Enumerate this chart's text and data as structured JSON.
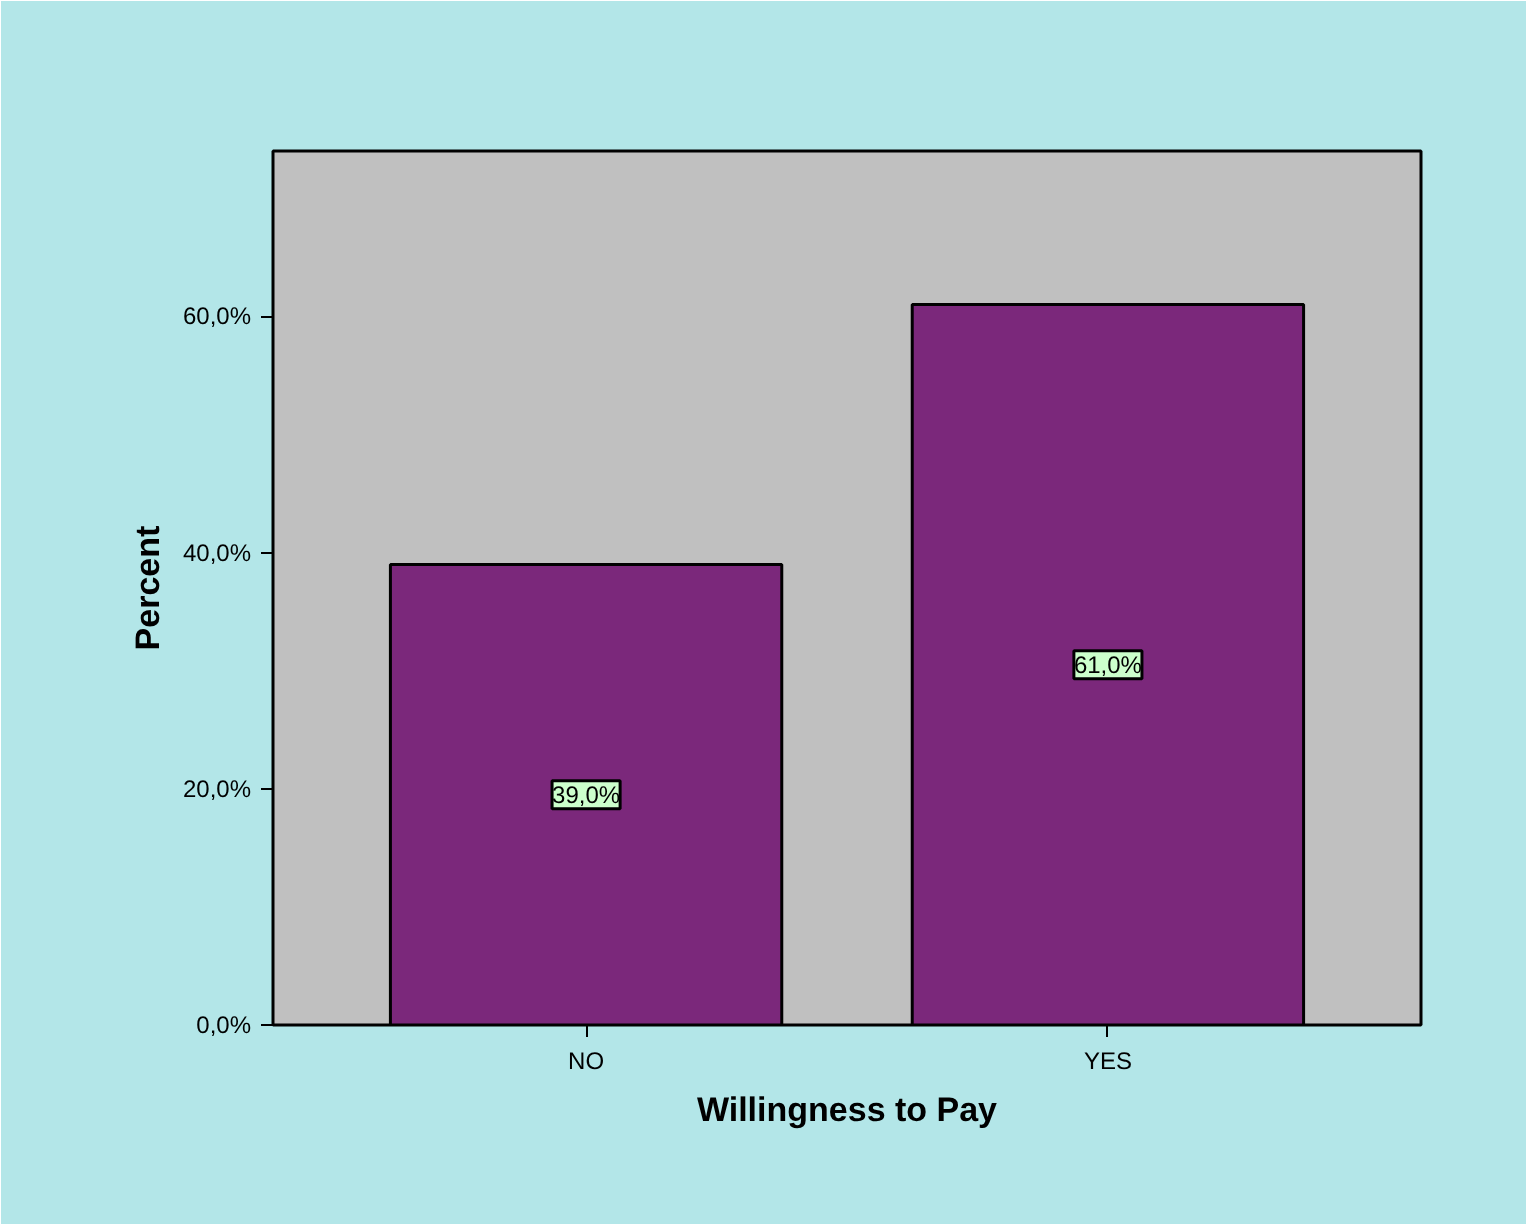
{
  "chart_data": {
    "type": "bar",
    "categories": [
      "NO",
      "YES"
    ],
    "values": [
      39,
      61
    ],
    "color": "#7b287b",
    "value_labels": [
      "39,0%",
      "61,0%"
    ],
    "xlabel": "Willingness to Pay",
    "ylabel": "Percent",
    "ylim": [
      0,
      74
    ],
    "yticks": [
      {
        "value": 0,
        "label": "0,0%"
      },
      {
        "value": 20,
        "label": "20,0%"
      },
      {
        "value": 40,
        "label": "40,0%"
      },
      {
        "value": 60,
        "label": "60,0%"
      }
    ],
    "grid": false
  }
}
